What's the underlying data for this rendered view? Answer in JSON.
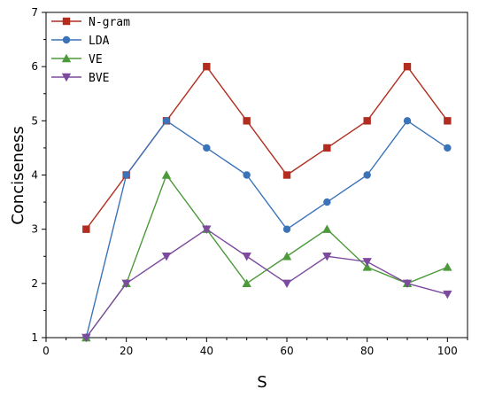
{
  "chart_data": {
    "type": "line",
    "title": "",
    "xlabel": "S",
    "ylabel": "Conciseness",
    "xlim": [
      0,
      105
    ],
    "ylim": [
      1,
      7
    ],
    "xticks": [
      0,
      20,
      40,
      60,
      80,
      100
    ],
    "yticks": [
      1,
      2,
      3,
      4,
      5,
      6,
      7
    ],
    "grid": false,
    "legend_position": "top-left",
    "x": [
      10,
      20,
      30,
      40,
      50,
      60,
      70,
      80,
      90,
      100
    ],
    "series": [
      {
        "name": "N-gram",
        "color": "#b22d1f",
        "marker": "square",
        "values": [
          3,
          4,
          5,
          6,
          5,
          4,
          4.5,
          5,
          6,
          5
        ]
      },
      {
        "name": "LDA",
        "color": "#3b73b8",
        "marker": "circle",
        "values": [
          1,
          4,
          5,
          4.5,
          4,
          3,
          3.5,
          4,
          5,
          4.5
        ]
      },
      {
        "name": "VE",
        "color": "#4c9a3a",
        "marker": "triangle-up",
        "values": [
          1,
          2,
          4,
          3,
          2,
          2.5,
          3,
          2.3,
          2,
          2.3
        ]
      },
      {
        "name": "BVE",
        "color": "#7d4b9e",
        "marker": "triangle-down",
        "values": [
          1,
          2,
          2.5,
          3,
          2.5,
          2,
          2.5,
          2.4,
          2,
          1.8
        ]
      }
    ]
  }
}
